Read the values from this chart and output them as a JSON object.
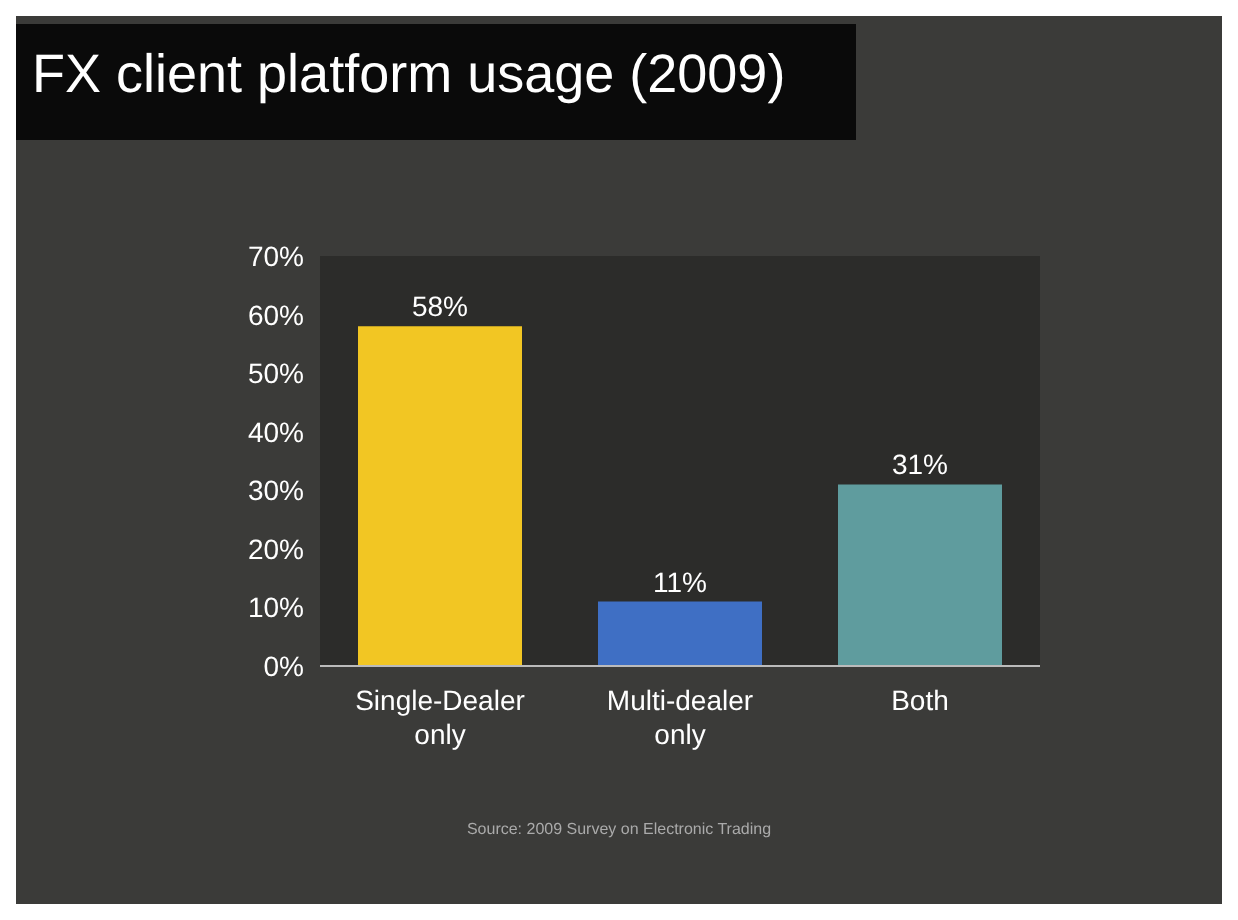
{
  "chart_data": {
    "type": "bar",
    "title": "FX client platform usage (2009)",
    "categories": [
      "Single-Dealer only",
      "Multi-dealer only",
      "Both"
    ],
    "values": [
      58,
      11,
      31
    ],
    "colors": [
      "#f2c623",
      "#3f6fc4",
      "#5f9c9e"
    ],
    "value_labels": [
      "58%",
      "11%",
      "31%"
    ],
    "ylim": [
      0,
      70
    ],
    "yticks": [
      {
        "value": 0,
        "label": "0%"
      },
      {
        "value": 10,
        "label": "10%"
      },
      {
        "value": 20,
        "label": "20%"
      },
      {
        "value": 30,
        "label": "30%"
      },
      {
        "value": 40,
        "label": "40%"
      },
      {
        "value": 50,
        "label": "50%"
      },
      {
        "value": 60,
        "label": "60%"
      },
      {
        "value": 70,
        "label": "70%"
      }
    ],
    "grid": false,
    "legend": false,
    "annotations": [
      "Source: 2009 Survey on Electronic Trading"
    ]
  }
}
